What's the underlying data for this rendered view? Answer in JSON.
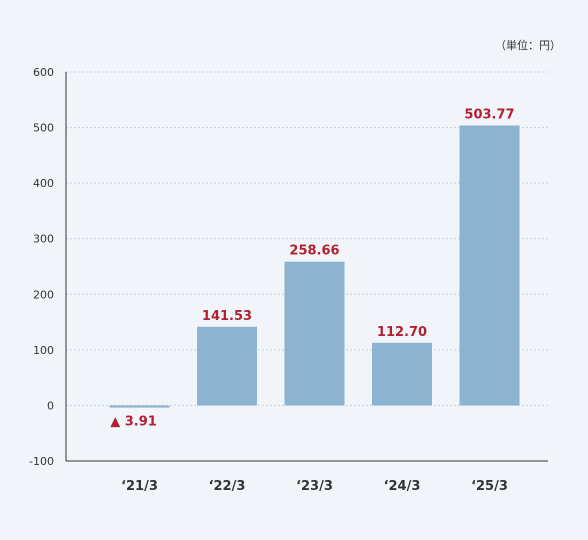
{
  "chart_data": {
    "type": "bar",
    "unit_note": "（単位：円）",
    "categories": [
      "‘21/3",
      "‘22/3",
      "‘23/3",
      "‘24/3",
      "‘25/3"
    ],
    "values": [
      -3.91,
      141.53,
      258.66,
      112.7,
      503.77
    ],
    "data_labels": [
      "▲ 3.91",
      "141.53",
      "258.66",
      "112.70",
      "503.77"
    ],
    "yticks": [
      "600",
      "500",
      "400",
      "300",
      "200",
      "100",
      "0",
      "-100"
    ],
    "ylim": [
      -100,
      600
    ],
    "grid": true,
    "bar_color": "#8cb3cf",
    "label_color": "#b22032",
    "axis_color": "#333333"
  }
}
